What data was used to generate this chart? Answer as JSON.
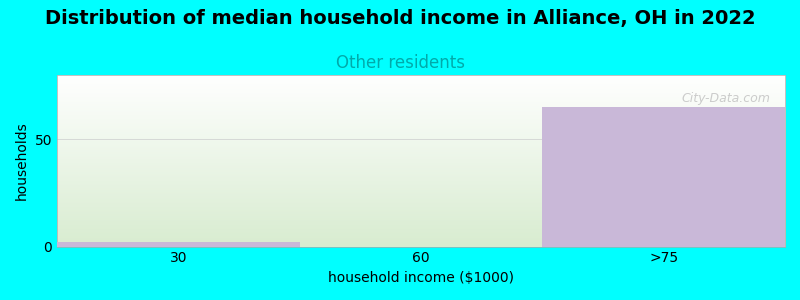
{
  "title": "Distribution of median household income in Alliance, OH in 2022",
  "subtitle": "Other residents",
  "xlabel": "household income ($1000)",
  "ylabel": "households",
  "categories": [
    "30",
    "60",
    ">75"
  ],
  "values": [
    2,
    0,
    65
  ],
  "bar_color": "#c9b8d8",
  "background_color": "#00ffff",
  "plot_bg_top": "#ffffff",
  "plot_bg_bottom": "#d8ecd0",
  "ylim": [
    0,
    80
  ],
  "yticks": [
    0,
    50
  ],
  "watermark": "City-Data.com",
  "title_fontsize": 14,
  "subtitle_fontsize": 12,
  "subtitle_color": "#00aaaa",
  "axis_label_fontsize": 10,
  "bar_width": 1.0
}
